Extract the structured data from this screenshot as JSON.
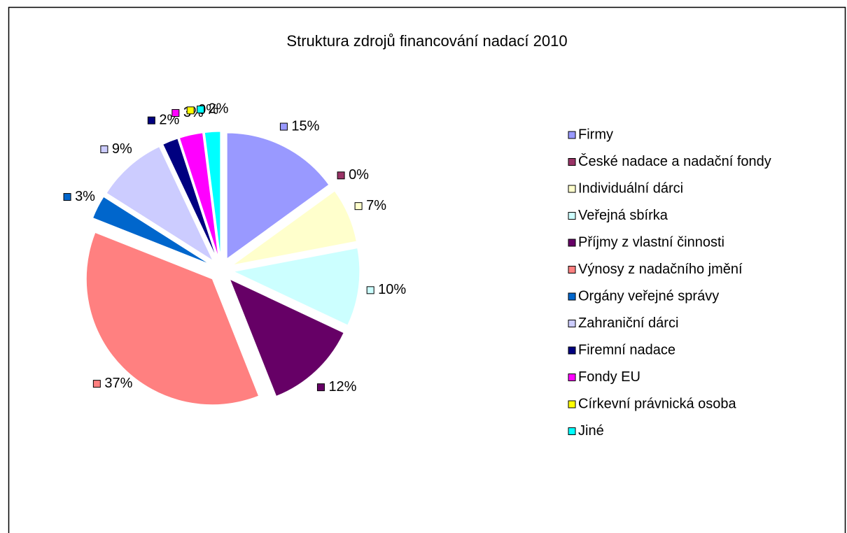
{
  "chart_data": {
    "type": "pie",
    "title": "Struktura zdrojů financování nadací 2010",
    "categories": [
      "Firmy",
      "České nadace a nadační fondy",
      "Individuální dárci",
      "Veřejná sbírka",
      "Příjmy z vlastní činnosti",
      "Výnosy z nadačního jmění",
      "Orgány veřejné správy",
      "Zahraniční dárci",
      "Firemní nadace",
      "Fondy EU",
      "Církevní právnická osoba",
      "Jiné"
    ],
    "values": [
      15,
      0,
      7,
      10,
      12,
      37,
      3,
      9,
      2,
      3,
      0,
      2
    ],
    "value_labels": [
      "15%",
      "0%",
      "7%",
      "10%",
      "12%",
      "37%",
      "3%",
      "9%",
      "2%",
      "3%",
      "0%",
      "2%"
    ],
    "colors": [
      "#9999ff",
      "#993366",
      "#ffffcc",
      "#ccffff",
      "#660066",
      "#ff8080",
      "#0066cc",
      "#ccccff",
      "#000080",
      "#ff00ff",
      "#ffff00",
      "#00ffff"
    ],
    "legend": "right"
  }
}
